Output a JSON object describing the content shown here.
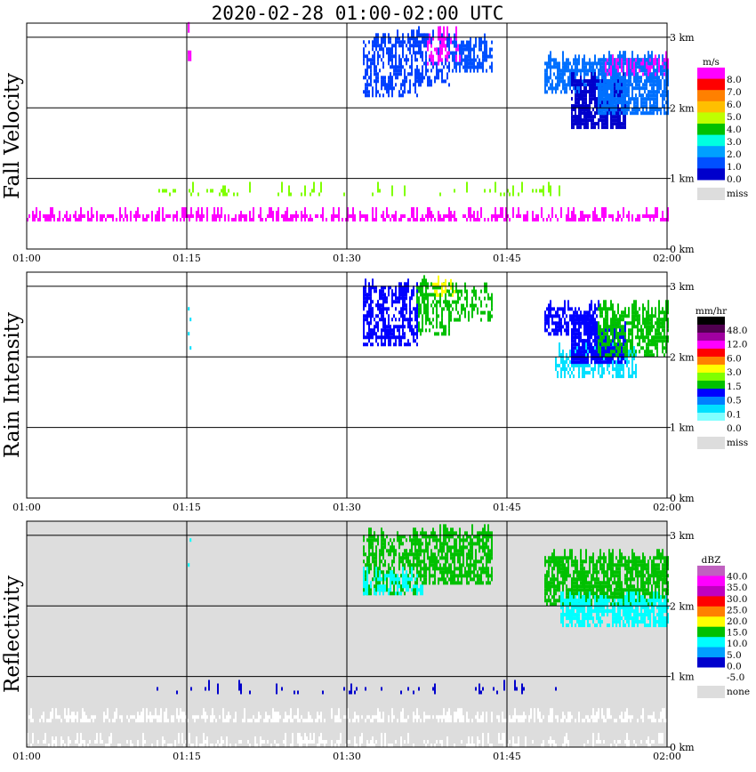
{
  "title": "2020-02-28   01:00-02:00 UTC",
  "colors": {
    "missing": "#dddddd",
    "grid": "#000000"
  },
  "chart_data": [
    {
      "type": "heatmap",
      "ylabel": "Fall Velocity",
      "xticks": [
        "01:00",
        "01:15",
        "01:30",
        "01:45",
        "02:00"
      ],
      "yticks": [
        "0 km",
        "1 km",
        "2 km",
        "3 km"
      ],
      "x_range_minutes": [
        0,
        60
      ],
      "y_range_km": [
        0,
        3.2
      ],
      "background": "white",
      "colorbar": {
        "unit": "m/s",
        "labels": [
          "8.0",
          "7.0",
          "6.0",
          "5.0",
          "4.0",
          "3.0",
          "2.0",
          "1.0",
          "0.0"
        ],
        "colors": [
          "#ff00ff",
          "#ff0000",
          "#ff8000",
          "#ffbf00",
          "#bfff00",
          "#00c000",
          "#00ffe0",
          "#00a0ff",
          "#0050ff",
          "#0000cc"
        ],
        "missing_label": "miss"
      },
      "cells": [
        {
          "t0": 31.5,
          "t1": 36.5,
          "z0": 2.15,
          "z1": 3.0,
          "fill": "#0040ff",
          "density": 0.45
        },
        {
          "t0": 36.5,
          "t1": 39.5,
          "z0": 2.3,
          "z1": 3.05,
          "fill": "#0040ff",
          "density": 0.4
        },
        {
          "t0": 37.5,
          "t1": 40.5,
          "z0": 2.6,
          "z1": 3.05,
          "fill": "#ff00ff",
          "density": 0.25
        },
        {
          "t0": 39.5,
          "t1": 43.5,
          "z0": 2.5,
          "z1": 2.95,
          "fill": "#0050ff",
          "density": 0.45
        },
        {
          "t0": 48.5,
          "t1": 53.5,
          "z0": 2.2,
          "z1": 2.7,
          "fill": "#0070ff",
          "density": 0.6
        },
        {
          "t0": 51.0,
          "t1": 56.0,
          "z0": 1.7,
          "z1": 2.4,
          "fill": "#0000cc",
          "density": 0.75
        },
        {
          "t0": 53.5,
          "t1": 60.0,
          "z0": 1.9,
          "z1": 2.7,
          "fill": "#0070ff",
          "density": 0.7
        },
        {
          "t0": 54.0,
          "t1": 60.0,
          "z0": 2.45,
          "z1": 2.7,
          "fill": "#ff00ff",
          "density": 0.2
        },
        {
          "t0": 15.1,
          "t1": 15.4,
          "z0": 1.35,
          "z1": 3.15,
          "fill": "#ff00ff",
          "density": 0.06
        },
        {
          "t0": 0.0,
          "t1": 60.0,
          "z0": 0.39,
          "z1": 0.45,
          "fill": "#ff00ff",
          "density": 0.55
        },
        {
          "t0": 12.0,
          "t1": 50.0,
          "z0": 0.75,
          "z1": 0.82,
          "fill": "#80ff00",
          "density": 0.12
        }
      ]
    },
    {
      "type": "heatmap",
      "ylabel": "Rain Intensity",
      "xticks": [
        "01:00",
        "01:15",
        "01:30",
        "01:45",
        "02:00"
      ],
      "yticks": [
        "0 km",
        "1 km",
        "2 km",
        "3 km"
      ],
      "x_range_minutes": [
        0,
        60
      ],
      "y_range_km": [
        0,
        3.2
      ],
      "background": "white",
      "colorbar": {
        "unit": "mm/hr",
        "labels": [
          "48.0",
          "12.0",
          "6.0",
          "3.0",
          "1.5",
          "0.5",
          "0.1",
          "0.0"
        ],
        "colors": [
          "#000000",
          "#500050",
          "#a000a0",
          "#ff00ff",
          "#ff0000",
          "#ff8000",
          "#ffff00",
          "#80ff00",
          "#00c000",
          "#0000ff",
          "#0080ff",
          "#00e0ff",
          "#80ffff",
          "#ffffff"
        ],
        "missing_label": "miss"
      },
      "cells": [
        {
          "t0": 31.5,
          "t1": 36.5,
          "z0": 2.15,
          "z1": 3.0,
          "fill": "#0000ff",
          "density": 0.45
        },
        {
          "t0": 36.5,
          "t1": 39.5,
          "z0": 2.3,
          "z1": 3.05,
          "fill": "#00c000",
          "density": 0.35
        },
        {
          "t0": 38.0,
          "t1": 40.0,
          "z0": 2.85,
          "z1": 3.05,
          "fill": "#ffff00",
          "density": 0.3
        },
        {
          "t0": 39.5,
          "t1": 43.5,
          "z0": 2.5,
          "z1": 2.95,
          "fill": "#00c000",
          "density": 0.4
        },
        {
          "t0": 48.5,
          "t1": 53.5,
          "z0": 2.3,
          "z1": 2.7,
          "fill": "#0000ff",
          "density": 0.55
        },
        {
          "t0": 49.5,
          "t1": 57.0,
          "z0": 1.7,
          "z1": 2.1,
          "fill": "#00e0ff",
          "density": 0.5
        },
        {
          "t0": 51.0,
          "t1": 56.0,
          "z0": 1.9,
          "z1": 2.4,
          "fill": "#0000ff",
          "density": 0.7
        },
        {
          "t0": 53.5,
          "t1": 60.0,
          "z0": 2.0,
          "z1": 2.7,
          "fill": "#00c000",
          "density": 0.55
        },
        {
          "t0": 15.1,
          "t1": 15.4,
          "z0": 1.9,
          "z1": 3.15,
          "fill": "#00e0ff",
          "density": 0.05
        }
      ]
    },
    {
      "type": "heatmap",
      "ylabel": "Reflectivity",
      "xticks": [
        "01:00",
        "01:15",
        "01:30",
        "01:45",
        "02:00"
      ],
      "yticks": [
        "0 km",
        "1 km",
        "2 km",
        "3 km"
      ],
      "x_range_minutes": [
        0,
        60
      ],
      "y_range_km": [
        0,
        3.2
      ],
      "background": "missing",
      "colorbar": {
        "unit": "dBZ",
        "labels": [
          "40.0",
          "35.0",
          "30.0",
          "25.0",
          "20.0",
          "15.0",
          "10.0",
          "5.0",
          "0.0",
          "-5.0"
        ],
        "colors": [
          "#c060c0",
          "#ff00ff",
          "#c000c0",
          "#ff0000",
          "#ff8000",
          "#ffff00",
          "#00c000",
          "#00ffff",
          "#00a0ff",
          "#0000cc",
          "#ffffff"
        ],
        "missing_label": "none"
      },
      "cells": [
        {
          "t0": 31.5,
          "t1": 36.5,
          "z0": 2.15,
          "z1": 3.0,
          "fill": "#00c000",
          "density": 0.4
        },
        {
          "t0": 31.5,
          "t1": 37.0,
          "z0": 2.15,
          "z1": 2.45,
          "fill": "#00ffff",
          "density": 0.4
        },
        {
          "t0": 36.5,
          "t1": 43.5,
          "z0": 2.3,
          "z1": 3.05,
          "fill": "#00c000",
          "density": 0.55
        },
        {
          "t0": 48.5,
          "t1": 60.0,
          "z0": 2.0,
          "z1": 2.7,
          "fill": "#00c000",
          "density": 0.65
        },
        {
          "t0": 50.0,
          "t1": 60.0,
          "z0": 1.7,
          "z1": 2.1,
          "fill": "#00ffff",
          "density": 0.6
        },
        {
          "t0": 15.1,
          "t1": 15.4,
          "z0": 1.9,
          "z1": 3.15,
          "fill": "#00ffff",
          "density": 0.05
        },
        {
          "t0": 12.0,
          "t1": 50.0,
          "z0": 0.75,
          "z1": 0.82,
          "fill": "#0000cc",
          "density": 0.1
        },
        {
          "t0": 0.0,
          "t1": 60.0,
          "z0": 0.35,
          "z1": 0.45,
          "fill": "#ffffff",
          "density": 0.5
        },
        {
          "t0": 0.0,
          "t1": 60.0,
          "z0": 0.0,
          "z1": 0.06,
          "fill": "#ffffff",
          "density": 0.3
        }
      ]
    }
  ]
}
